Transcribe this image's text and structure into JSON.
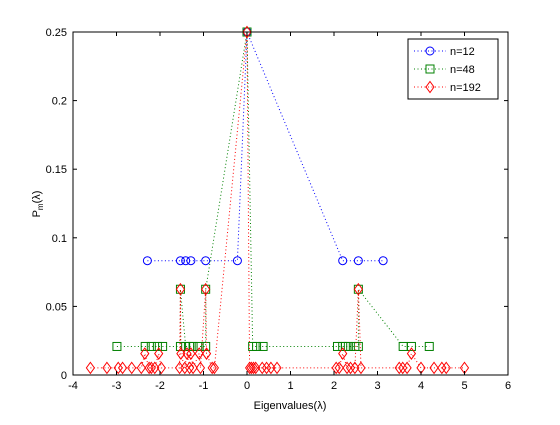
{
  "chart_data": {
    "type": "scatter",
    "xlabel": "Eigenvalues(λ)",
    "ylabel": "P_m(λ)",
    "ylabel_main": "P",
    "ylabel_sub": "m",
    "ylabel_rest": "(λ)",
    "xlim": [
      -4,
      6
    ],
    "ylim": [
      0,
      0.25
    ],
    "xticks": [
      -4,
      -3,
      -2,
      -1,
      0,
      1,
      2,
      3,
      4,
      5,
      6
    ],
    "xtick_labels": [
      "-4",
      "-3",
      "-2",
      "-1",
      "0",
      "1",
      "2",
      "3",
      "4",
      "5",
      "6"
    ],
    "yticks": [
      0,
      0.05,
      0.1,
      0.15,
      0.2,
      0.25
    ],
    "ytick_labels": [
      "0",
      "0.05",
      "0.1",
      "0.15",
      "0.2",
      "0.25"
    ],
    "grid": false,
    "legend_position": "top-right",
    "line_style": "dotted",
    "series": [
      {
        "name": "n=12",
        "color": "#0000ff",
        "marker": "circle",
        "x": [
          -2.29,
          -1.53,
          -1.41,
          -1.29,
          -0.95,
          -0.22,
          0.0,
          2.2,
          2.56,
          3.13
        ],
        "y": [
          0.0833,
          0.0833,
          0.0833,
          0.0833,
          0.0833,
          0.0833,
          0.25,
          0.0833,
          0.0833,
          0.0833
        ]
      },
      {
        "name": "n=48",
        "color": "#008000",
        "marker": "square",
        "x": [
          -2.99,
          -2.34,
          -2.2,
          -2.06,
          -1.94,
          -1.53,
          -1.53,
          -1.41,
          -1.32,
          -1.24,
          -1.1,
          -0.95,
          -0.95,
          0.0,
          0.13,
          0.22,
          0.37,
          2.08,
          2.2,
          2.26,
          2.33,
          2.48,
          2.56,
          2.56,
          3.59,
          3.78,
          4.19
        ],
        "y": [
          0.0208,
          0.0208,
          0.0208,
          0.0208,
          0.0208,
          0.0208,
          0.0625,
          0.0208,
          0.0208,
          0.0208,
          0.0208,
          0.0208,
          0.0625,
          0.25,
          0.0208,
          0.0208,
          0.0208,
          0.0208,
          0.0208,
          0.0208,
          0.0208,
          0.0208,
          0.0208,
          0.0625,
          0.0208,
          0.0208,
          0.0208
        ]
      },
      {
        "name": "n=192",
        "color": "#ff0000",
        "marker": "diamond",
        "x": [
          -3.6,
          -3.22,
          -2.96,
          -2.86,
          -2.65,
          -2.43,
          -2.35,
          -2.25,
          -2.2,
          -2.12,
          -2.03,
          -1.97,
          -1.55,
          -1.53,
          -1.52,
          -1.43,
          -1.38,
          -1.32,
          -1.29,
          -1.24,
          -1.1,
          -1.07,
          -0.95,
          -0.93,
          -0.8,
          -0.75,
          0.0,
          0.06,
          0.1,
          0.15,
          0.2,
          0.35,
          0.45,
          0.55,
          0.69,
          2.05,
          2.12,
          2.2,
          2.3,
          2.38,
          2.48,
          2.56,
          2.62,
          3.5,
          3.58,
          3.68,
          3.78,
          4.0,
          4.3,
          4.48,
          4.58,
          5.0
        ],
        "y": [
          0.0052,
          0.0052,
          0.0052,
          0.0052,
          0.0052,
          0.0052,
          0.0156,
          0.0052,
          0.0052,
          0.0052,
          0.0156,
          0.0052,
          0.0052,
          0.0625,
          0.0156,
          0.0052,
          0.0156,
          0.0052,
          0.0156,
          0.0052,
          0.0156,
          0.0052,
          0.0625,
          0.0156,
          0.0052,
          0.0052,
          0.25,
          0.0052,
          0.0052,
          0.0052,
          0.0052,
          0.0052,
          0.0052,
          0.0052,
          0.0052,
          0.0052,
          0.0052,
          0.0156,
          0.0052,
          0.0052,
          0.0052,
          0.0625,
          0.0052,
          0.0052,
          0.0052,
          0.0052,
          0.0156,
          0.0052,
          0.0052,
          0.0052,
          0.0052,
          0.0052
        ]
      }
    ]
  }
}
